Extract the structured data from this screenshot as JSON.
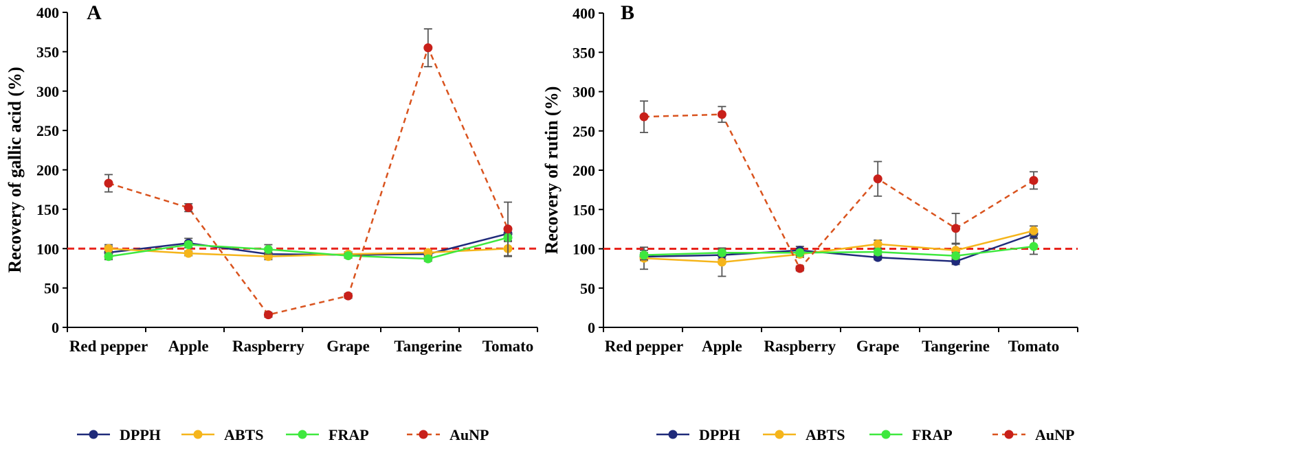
{
  "chart_data": [
    {
      "type": "line",
      "panel_label": "A",
      "title": "",
      "xlabel": "",
      "ylabel": "Recovery of gallic acid (%)",
      "categories": [
        "Red pepper",
        "Apple",
        "Raspberry",
        "Grape",
        "Tangerine",
        "Tomato"
      ],
      "ylim": [
        0,
        400
      ],
      "yticks": [
        0,
        50,
        100,
        150,
        200,
        250,
        300,
        350,
        400
      ],
      "reference_line": 100,
      "grid": false,
      "legend_position": "bottom",
      "series": [
        {
          "name": "DPPH",
          "color": "#1f2a7a",
          "dashed": false,
          "values": [
            95,
            107,
            93,
            92,
            93,
            119
          ],
          "errors": [
            8,
            6,
            5,
            3,
            3,
            5
          ]
        },
        {
          "name": "ABTS",
          "color": "#f5b51b",
          "dashed": false,
          "values": [
            100,
            94,
            90,
            93,
            95,
            100
          ],
          "errors": [
            5,
            3,
            4,
            3,
            3,
            10
          ]
        },
        {
          "name": "FRAP",
          "color": "#3ee83e",
          "dashed": false,
          "values": [
            90,
            105,
            99,
            91,
            87,
            114
          ],
          "errors": [
            4,
            4,
            6,
            3,
            3,
            5
          ]
        },
        {
          "name": "AuNP",
          "color": "#d9531e",
          "dashed": true,
          "marker_color": "#c8201a",
          "values": [
            183,
            152,
            16,
            40,
            355,
            125
          ],
          "errors": [
            11,
            5,
            3,
            3,
            24,
            34
          ]
        }
      ]
    },
    {
      "type": "line",
      "panel_label": "B",
      "title": "",
      "xlabel": "",
      "ylabel": "Recovery of rutin (%)",
      "categories": [
        "Red pepper",
        "Apple",
        "Raspberry",
        "Grape",
        "Tangerine",
        "Tomato"
      ],
      "ylim": [
        0,
        400
      ],
      "yticks": [
        0,
        50,
        100,
        150,
        200,
        250,
        300,
        350,
        400
      ],
      "reference_line": 100,
      "grid": false,
      "legend_position": "bottom",
      "series": [
        {
          "name": "DPPH",
          "color": "#1f2a7a",
          "dashed": false,
          "values": [
            90,
            92,
            98,
            89,
            84,
            119
          ],
          "errors": [
            5,
            5,
            5,
            3,
            4,
            5
          ]
        },
        {
          "name": "ABTS",
          "color": "#f5b51b",
          "dashed": false,
          "values": [
            88,
            83,
            93,
            106,
            98,
            123
          ],
          "errors": [
            14,
            18,
            4,
            5,
            8,
            6
          ]
        },
        {
          "name": "FRAP",
          "color": "#3ee83e",
          "dashed": false,
          "values": [
            92,
            95,
            95,
            96,
            91,
            103
          ],
          "errors": [
            6,
            4,
            4,
            4,
            4,
            10
          ]
        },
        {
          "name": "AuNP",
          "color": "#d9531e",
          "dashed": true,
          "marker_color": "#c8201a",
          "values": [
            268,
            271,
            75,
            189,
            126,
            187
          ],
          "errors": [
            20,
            10,
            3,
            22,
            19,
            11
          ]
        }
      ]
    }
  ]
}
